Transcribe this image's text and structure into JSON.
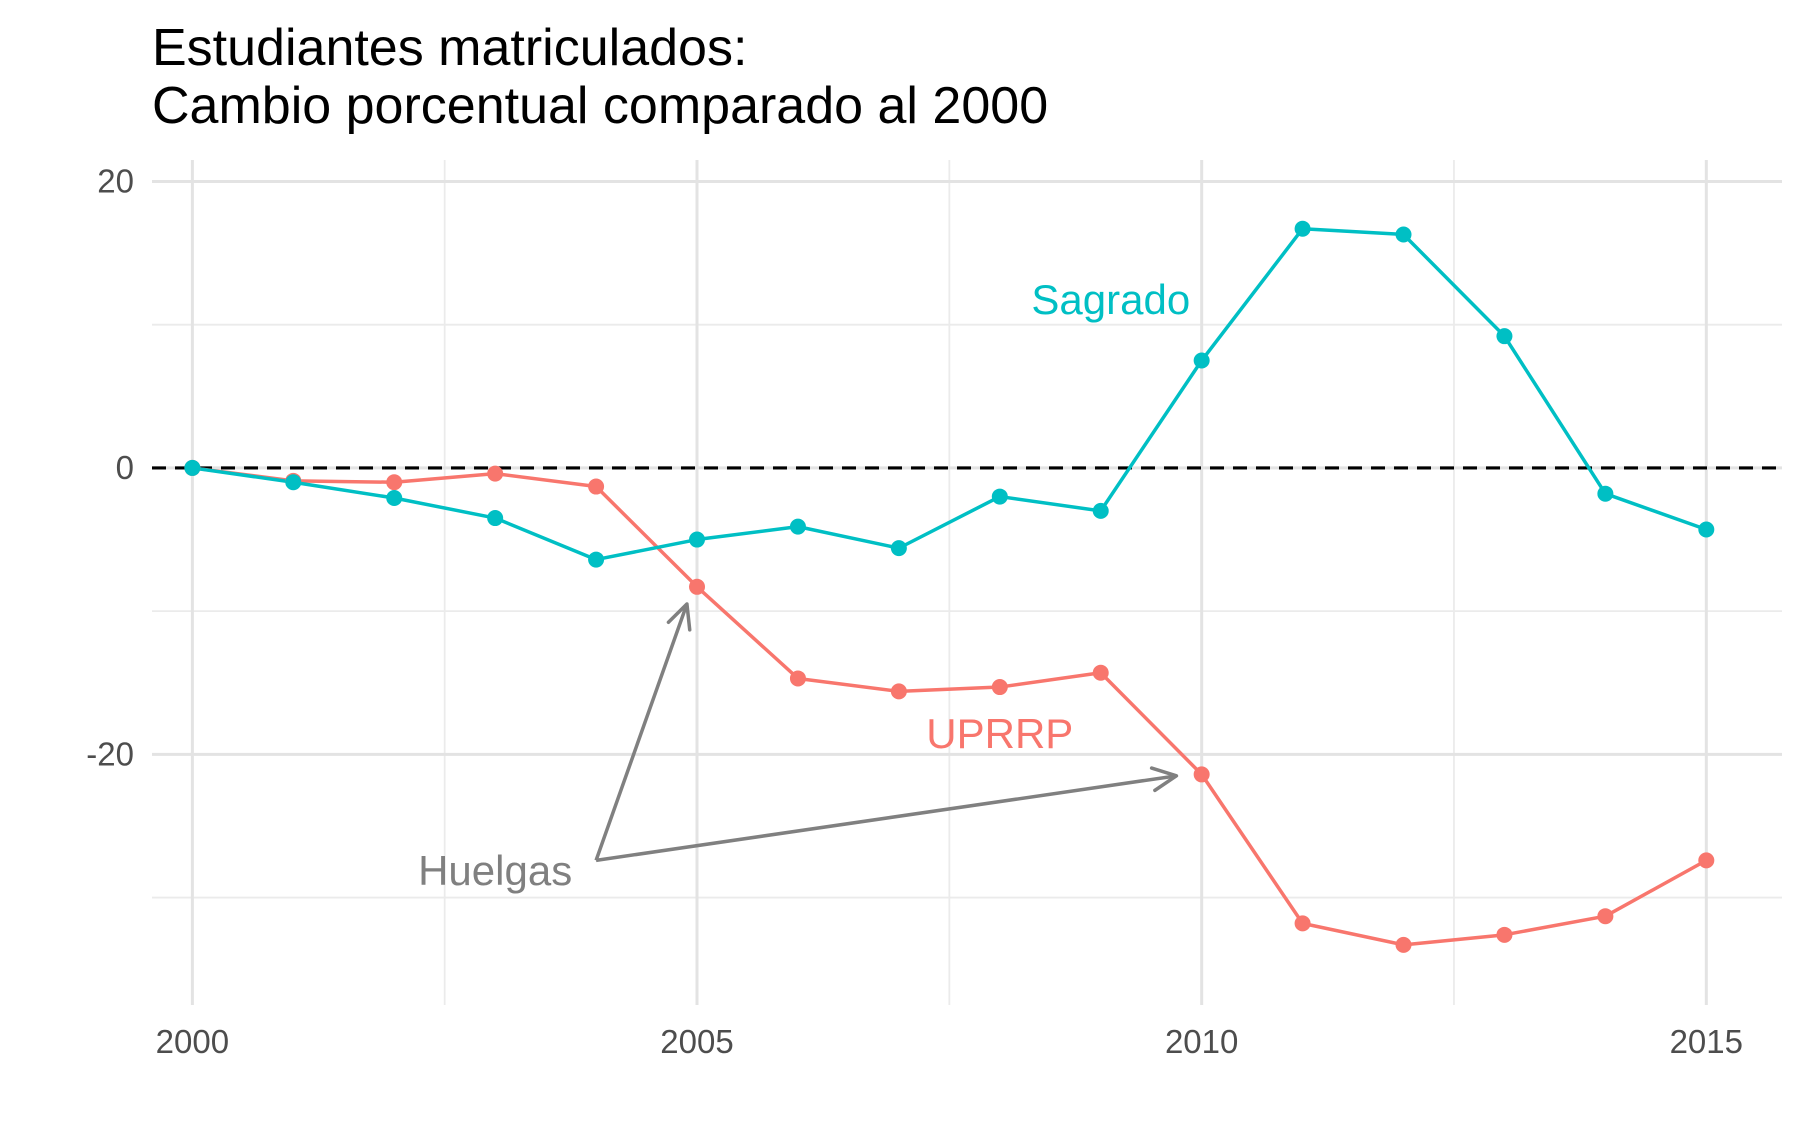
{
  "chart_data": {
    "type": "line",
    "title": [
      "Estudiantes matriculados:",
      "Cambio porcentual comparado al 2000"
    ],
    "xlabel": "",
    "ylabel": "",
    "xlim": [
      1999.6,
      2015.75
    ],
    "ylim": [
      -37.5,
      21.5
    ],
    "x_ticks": [
      2000,
      2005,
      2010,
      2015
    ],
    "x_tick_labels": [
      "2000",
      "2005",
      "2010",
      "2015"
    ],
    "x_minor_ticks": [
      2002.5,
      2007.5,
      2012.5
    ],
    "y_ticks": [
      20,
      0,
      -20
    ],
    "y_tick_labels": [
      "20",
      "0",
      "-20"
    ],
    "y_minor_ticks": [
      10,
      -10,
      -30
    ],
    "grid": true,
    "reference_line": {
      "y": 0,
      "style": "dashed",
      "color": "#000000"
    },
    "x": [
      2000,
      2001,
      2002,
      2003,
      2004,
      2005,
      2006,
      2007,
      2008,
      2009,
      2010,
      2011,
      2012,
      2013,
      2014,
      2015
    ],
    "series": [
      {
        "name": "UPRRP",
        "color": "#F8766D",
        "values": [
          0,
          -0.9,
          -1.0,
          -0.4,
          -1.3,
          -8.3,
          -14.7,
          -15.6,
          -15.3,
          -14.3,
          -21.4,
          -31.8,
          -33.3,
          -32.6,
          -31.3,
          -27.4
        ],
        "label": {
          "text": "UPRRP",
          "x": 2008.0,
          "y": -18.5
        }
      },
      {
        "name": "Sagrado",
        "color": "#00BFC4",
        "values": [
          0,
          -1.0,
          -2.1,
          -3.5,
          -6.4,
          -5.0,
          -4.1,
          -5.6,
          -2.0,
          -3.0,
          7.5,
          16.7,
          16.3,
          9.2,
          -1.8,
          -4.3
        ],
        "label": {
          "text": "Sagrado",
          "x": 2009.1,
          "y": 11.8
        }
      }
    ],
    "annotations": [
      {
        "text": "Huelgas",
        "color": "#808080",
        "text_pos": {
          "x": 2003.0,
          "y": -28.0
        },
        "arrow_from": {
          "x": 2004.0,
          "y": -27.4
        },
        "arrow_targets": [
          {
            "x": 2004.9,
            "y": -9.5
          },
          {
            "x": 2009.75,
            "y": -21.5
          }
        ]
      }
    ]
  }
}
